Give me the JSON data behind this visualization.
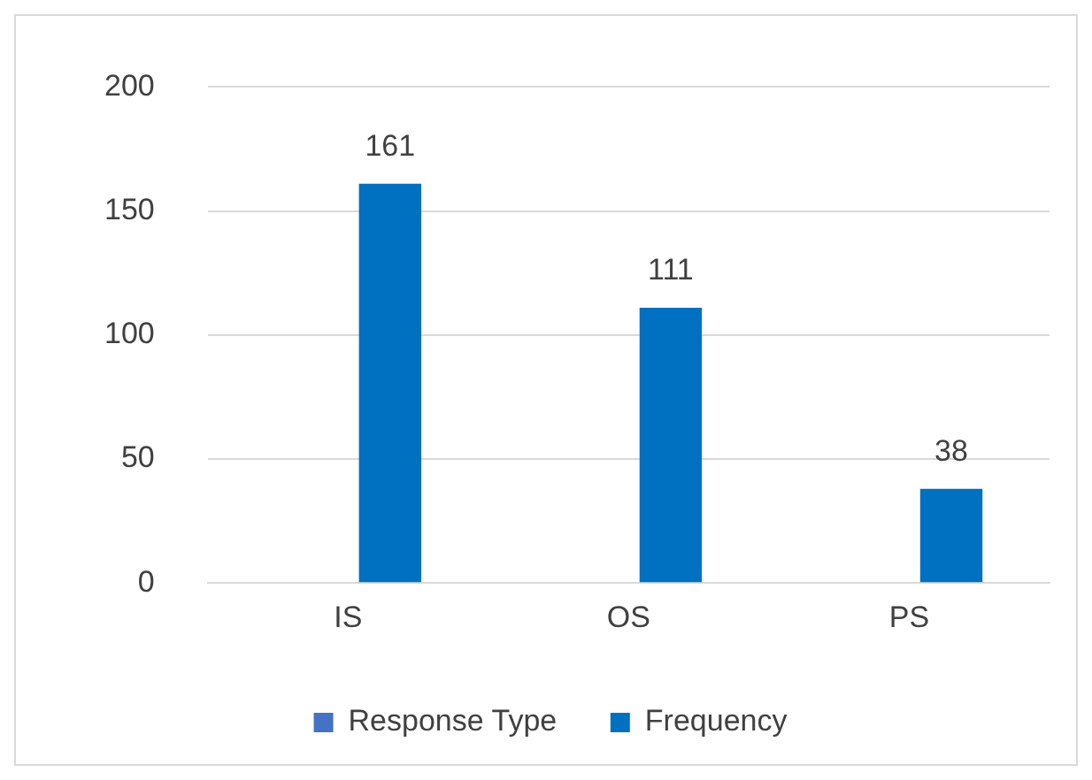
{
  "chart_data": {
    "type": "bar",
    "categories": [
      "IS",
      "OS",
      "PS"
    ],
    "series": [
      {
        "name": "Response Type",
        "color": "#4472c4",
        "values": [
          null,
          null,
          null
        ]
      },
      {
        "name": "Frequency",
        "color": "#0070c0",
        "values": [
          161,
          111,
          38
        ]
      }
    ],
    "ylim": [
      0,
      200
    ],
    "yticks": [
      0,
      50,
      100,
      150,
      200
    ],
    "grid": "y",
    "legend": "bottom",
    "data_labels": true
  }
}
